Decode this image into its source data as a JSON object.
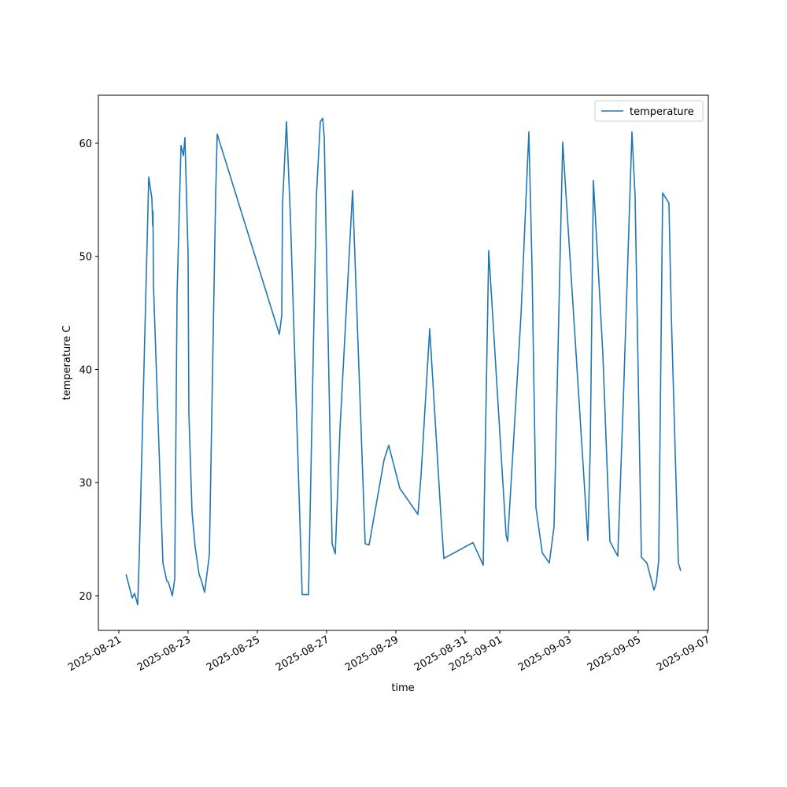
{
  "chart_data": {
    "type": "line",
    "x_label": "time",
    "y_label": "temperature C",
    "legend": "upper right",
    "grid": false,
    "x": [
      "2025-08-21T05:00",
      "2025-08-21T09:16",
      "2025-08-21T10:55",
      "2025-08-21T13:05",
      "2025-08-21T14:11",
      "2025-08-21T20:44",
      "2025-08-21T22:55",
      "2025-08-21T23:27",
      "2025-08-21T23:40",
      "2025-08-22T00:00",
      "2025-08-22T06:33",
      "2025-08-22T09:16",
      "2025-08-22T10:22",
      "2025-08-22T13:05",
      "2025-08-22T14:44",
      "2025-08-22T16:22",
      "2025-08-22T19:05",
      "2025-08-22T20:44",
      "2025-08-22T21:49",
      "2025-08-23T00:00",
      "2025-08-23T00:33",
      "2025-08-23T02:44",
      "2025-08-23T04:55",
      "2025-08-23T07:38",
      "2025-08-23T09:16",
      "2025-08-23T11:27",
      "2025-08-23T14:44",
      "2025-08-23T19:05",
      "2025-08-23T20:11",
      "2025-08-25T15:16",
      "2025-08-25T16:55",
      "2025-08-25T17:27",
      "2025-08-25T20:11",
      "2025-08-25T22:55",
      "2025-08-26T07:05",
      "2025-08-26T11:27",
      "2025-08-26T16:55",
      "2025-08-26T19:38",
      "2025-08-26T21:16",
      "2025-08-26T22:22",
      "2025-08-27T03:49",
      "2025-08-27T06:00",
      "2025-08-27T09:16",
      "2025-08-27T18:00",
      "2025-08-28T02:44",
      "2025-08-28T05:27",
      "2025-08-28T15:49",
      "2025-08-28T19:05",
      "2025-08-29T02:44",
      "2025-08-29T15:16",
      "2025-08-29T17:27",
      "2025-08-29T23:27",
      "2025-08-30T07:05",
      "2025-08-30T09:16",
      "2025-08-31T05:27",
      "2025-08-31T12:33",
      "2025-08-31T16:22",
      "2025-09-01T04:22",
      "2025-09-01T05:27",
      "2025-09-01T14:44",
      "2025-09-01T20:11",
      "2025-09-01T22:22",
      "2025-09-02T01:05",
      "2025-09-02T05:27",
      "2025-09-02T10:22",
      "2025-09-02T13:38",
      "2025-09-02T19:38",
      "2025-09-03T13:05",
      "2025-09-03T14:44",
      "2025-09-03T16:55",
      "2025-09-03T23:27",
      "2025-09-04T04:22",
      "2025-09-04T09:49",
      "2025-09-04T13:38",
      "2025-09-04T19:38",
      "2025-09-04T21:49",
      "2025-09-05T02:11",
      "2025-09-05T06:00",
      "2025-09-05T10:55",
      "2025-09-05T12:33",
      "2025-09-05T14:11",
      "2025-09-05T16:55",
      "2025-09-05T21:16",
      "2025-09-05T22:55",
      "2025-09-06T03:49",
      "2025-09-06T05:27"
    ],
    "series": [
      {
        "name": "temperature",
        "color": "#1f77b4",
        "values": [
          21.9,
          19.8,
          20.2,
          19.2,
          23.6,
          57.0,
          55.1,
          52.7,
          54.0,
          47.5,
          22.9,
          21.3,
          21.2,
          20.0,
          21.5,
          46.6,
          59.8,
          58.9,
          60.5,
          50.1,
          36.1,
          27.4,
          24.3,
          21.9,
          21.3,
          20.3,
          23.6,
          55.3,
          60.8,
          43.1,
          44.8,
          54.6,
          61.9,
          53.5,
          20.1,
          20.1,
          55.3,
          61.9,
          62.2,
          60.5,
          24.6,
          23.7,
          34.7,
          55.8,
          24.6,
          24.5,
          32.0,
          33.3,
          29.5,
          27.2,
          30.6,
          43.6,
          27.4,
          23.3,
          24.7,
          22.7,
          50.5,
          25.4,
          24.8,
          44.8,
          61.0,
          49.1,
          27.8,
          23.8,
          22.9,
          26.1,
          60.1,
          24.9,
          33.0,
          56.7,
          41.4,
          24.8,
          23.5,
          37.2,
          61.0,
          55.3,
          23.4,
          22.9,
          20.5,
          21.2,
          23.1,
          55.6,
          54.7,
          44.8,
          22.9,
          22.2
        ]
      }
    ],
    "xlim": [
      "2025-08-20T09:49",
      "2025-09-07T00:33"
    ],
    "xticks": [
      "2025-08-21",
      "2025-08-23",
      "2025-08-25",
      "2025-08-27",
      "2025-08-29",
      "2025-08-31",
      "2025-09-01",
      "2025-09-03",
      "2025-09-05",
      "2025-09-07"
    ],
    "ylim": [
      16.94,
      64.24
    ],
    "yticks": [
      20,
      30,
      40,
      50,
      60
    ]
  }
}
